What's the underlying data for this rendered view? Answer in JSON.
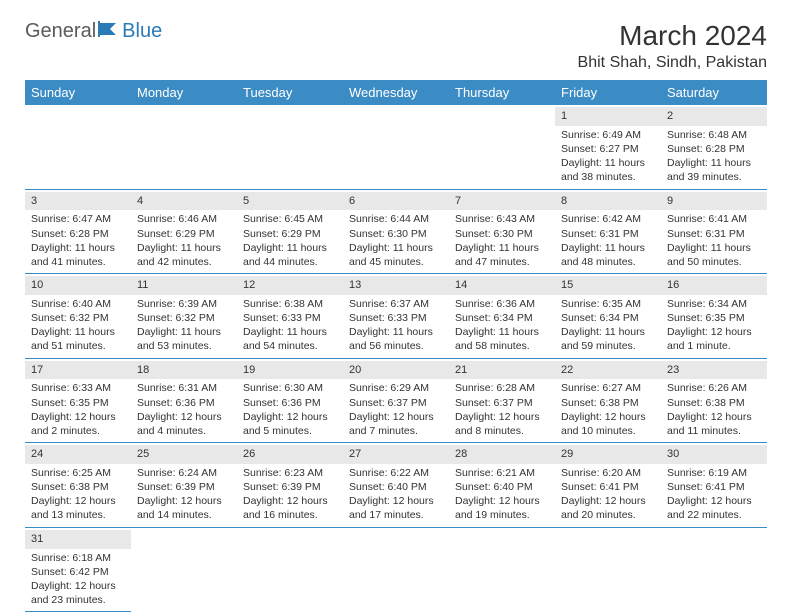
{
  "logo": {
    "text1": "General",
    "text2": "Blue"
  },
  "title": "March 2024",
  "location": "Bhit Shah, Sindh, Pakistan",
  "headers": [
    "Sunday",
    "Monday",
    "Tuesday",
    "Wednesday",
    "Thursday",
    "Friday",
    "Saturday"
  ],
  "colors": {
    "header_bg": "#3b8bc4",
    "header_fg": "#ffffff",
    "daynum_bg": "#e8e8e8",
    "border": "#3b8bc4",
    "text": "#333333",
    "logo_gray": "#5a5a5a",
    "logo_blue": "#2a7ab8"
  },
  "typography": {
    "title_fontsize": 28,
    "location_fontsize": 16,
    "header_fontsize": 13,
    "cell_fontsize": 10.5,
    "daynum_fontsize": 11,
    "logo_fontsize": 20
  },
  "weeks": [
    [
      null,
      null,
      null,
      null,
      null,
      {
        "n": "1",
        "sr": "Sunrise: 6:49 AM",
        "ss": "Sunset: 6:27 PM",
        "d1": "Daylight: 11 hours",
        "d2": "and 38 minutes."
      },
      {
        "n": "2",
        "sr": "Sunrise: 6:48 AM",
        "ss": "Sunset: 6:28 PM",
        "d1": "Daylight: 11 hours",
        "d2": "and 39 minutes."
      }
    ],
    [
      {
        "n": "3",
        "sr": "Sunrise: 6:47 AM",
        "ss": "Sunset: 6:28 PM",
        "d1": "Daylight: 11 hours",
        "d2": "and 41 minutes."
      },
      {
        "n": "4",
        "sr": "Sunrise: 6:46 AM",
        "ss": "Sunset: 6:29 PM",
        "d1": "Daylight: 11 hours",
        "d2": "and 42 minutes."
      },
      {
        "n": "5",
        "sr": "Sunrise: 6:45 AM",
        "ss": "Sunset: 6:29 PM",
        "d1": "Daylight: 11 hours",
        "d2": "and 44 minutes."
      },
      {
        "n": "6",
        "sr": "Sunrise: 6:44 AM",
        "ss": "Sunset: 6:30 PM",
        "d1": "Daylight: 11 hours",
        "d2": "and 45 minutes."
      },
      {
        "n": "7",
        "sr": "Sunrise: 6:43 AM",
        "ss": "Sunset: 6:30 PM",
        "d1": "Daylight: 11 hours",
        "d2": "and 47 minutes."
      },
      {
        "n": "8",
        "sr": "Sunrise: 6:42 AM",
        "ss": "Sunset: 6:31 PM",
        "d1": "Daylight: 11 hours",
        "d2": "and 48 minutes."
      },
      {
        "n": "9",
        "sr": "Sunrise: 6:41 AM",
        "ss": "Sunset: 6:31 PM",
        "d1": "Daylight: 11 hours",
        "d2": "and 50 minutes."
      }
    ],
    [
      {
        "n": "10",
        "sr": "Sunrise: 6:40 AM",
        "ss": "Sunset: 6:32 PM",
        "d1": "Daylight: 11 hours",
        "d2": "and 51 minutes."
      },
      {
        "n": "11",
        "sr": "Sunrise: 6:39 AM",
        "ss": "Sunset: 6:32 PM",
        "d1": "Daylight: 11 hours",
        "d2": "and 53 minutes."
      },
      {
        "n": "12",
        "sr": "Sunrise: 6:38 AM",
        "ss": "Sunset: 6:33 PM",
        "d1": "Daylight: 11 hours",
        "d2": "and 54 minutes."
      },
      {
        "n": "13",
        "sr": "Sunrise: 6:37 AM",
        "ss": "Sunset: 6:33 PM",
        "d1": "Daylight: 11 hours",
        "d2": "and 56 minutes."
      },
      {
        "n": "14",
        "sr": "Sunrise: 6:36 AM",
        "ss": "Sunset: 6:34 PM",
        "d1": "Daylight: 11 hours",
        "d2": "and 58 minutes."
      },
      {
        "n": "15",
        "sr": "Sunrise: 6:35 AM",
        "ss": "Sunset: 6:34 PM",
        "d1": "Daylight: 11 hours",
        "d2": "and 59 minutes."
      },
      {
        "n": "16",
        "sr": "Sunrise: 6:34 AM",
        "ss": "Sunset: 6:35 PM",
        "d1": "Daylight: 12 hours",
        "d2": "and 1 minute."
      }
    ],
    [
      {
        "n": "17",
        "sr": "Sunrise: 6:33 AM",
        "ss": "Sunset: 6:35 PM",
        "d1": "Daylight: 12 hours",
        "d2": "and 2 minutes."
      },
      {
        "n": "18",
        "sr": "Sunrise: 6:31 AM",
        "ss": "Sunset: 6:36 PM",
        "d1": "Daylight: 12 hours",
        "d2": "and 4 minutes."
      },
      {
        "n": "19",
        "sr": "Sunrise: 6:30 AM",
        "ss": "Sunset: 6:36 PM",
        "d1": "Daylight: 12 hours",
        "d2": "and 5 minutes."
      },
      {
        "n": "20",
        "sr": "Sunrise: 6:29 AM",
        "ss": "Sunset: 6:37 PM",
        "d1": "Daylight: 12 hours",
        "d2": "and 7 minutes."
      },
      {
        "n": "21",
        "sr": "Sunrise: 6:28 AM",
        "ss": "Sunset: 6:37 PM",
        "d1": "Daylight: 12 hours",
        "d2": "and 8 minutes."
      },
      {
        "n": "22",
        "sr": "Sunrise: 6:27 AM",
        "ss": "Sunset: 6:38 PM",
        "d1": "Daylight: 12 hours",
        "d2": "and 10 minutes."
      },
      {
        "n": "23",
        "sr": "Sunrise: 6:26 AM",
        "ss": "Sunset: 6:38 PM",
        "d1": "Daylight: 12 hours",
        "d2": "and 11 minutes."
      }
    ],
    [
      {
        "n": "24",
        "sr": "Sunrise: 6:25 AM",
        "ss": "Sunset: 6:38 PM",
        "d1": "Daylight: 12 hours",
        "d2": "and 13 minutes."
      },
      {
        "n": "25",
        "sr": "Sunrise: 6:24 AM",
        "ss": "Sunset: 6:39 PM",
        "d1": "Daylight: 12 hours",
        "d2": "and 14 minutes."
      },
      {
        "n": "26",
        "sr": "Sunrise: 6:23 AM",
        "ss": "Sunset: 6:39 PM",
        "d1": "Daylight: 12 hours",
        "d2": "and 16 minutes."
      },
      {
        "n": "27",
        "sr": "Sunrise: 6:22 AM",
        "ss": "Sunset: 6:40 PM",
        "d1": "Daylight: 12 hours",
        "d2": "and 17 minutes."
      },
      {
        "n": "28",
        "sr": "Sunrise: 6:21 AM",
        "ss": "Sunset: 6:40 PM",
        "d1": "Daylight: 12 hours",
        "d2": "and 19 minutes."
      },
      {
        "n": "29",
        "sr": "Sunrise: 6:20 AM",
        "ss": "Sunset: 6:41 PM",
        "d1": "Daylight: 12 hours",
        "d2": "and 20 minutes."
      },
      {
        "n": "30",
        "sr": "Sunrise: 6:19 AM",
        "ss": "Sunset: 6:41 PM",
        "d1": "Daylight: 12 hours",
        "d2": "and 22 minutes."
      }
    ],
    [
      {
        "n": "31",
        "sr": "Sunrise: 6:18 AM",
        "ss": "Sunset: 6:42 PM",
        "d1": "Daylight: 12 hours",
        "d2": "and 23 minutes."
      },
      null,
      null,
      null,
      null,
      null,
      null
    ]
  ]
}
